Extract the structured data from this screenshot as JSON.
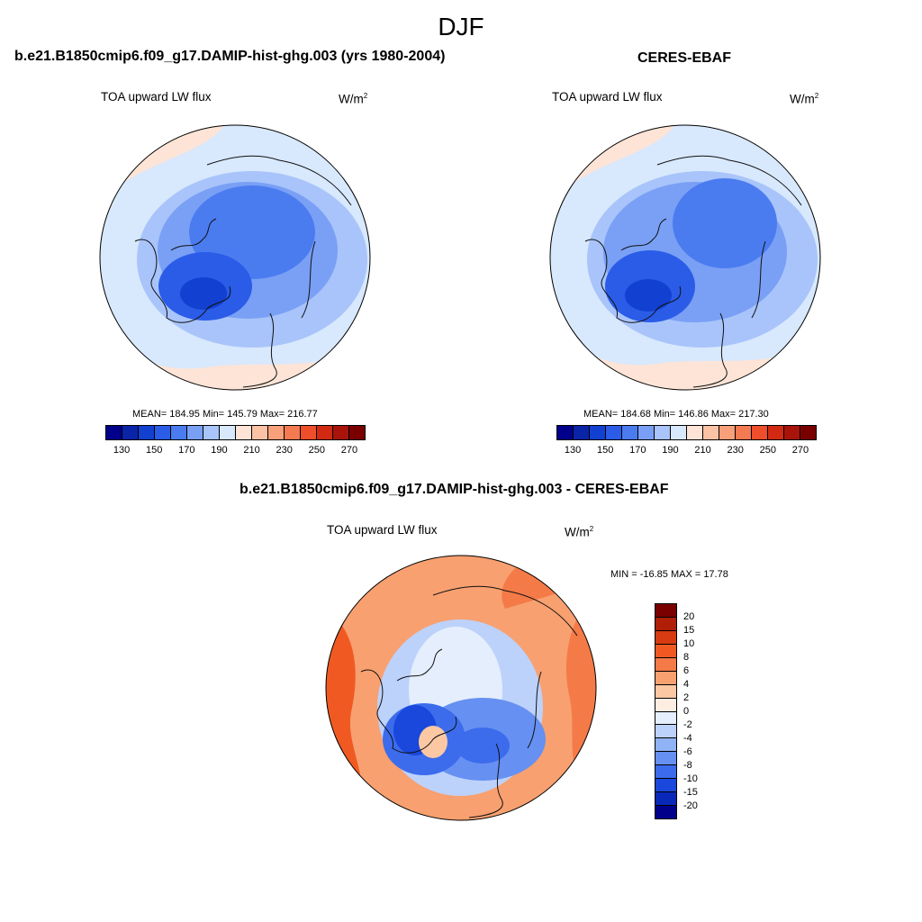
{
  "season": "DJF",
  "panels": [
    {
      "title": "b.e21.B1850cmip6.f09_g17.DAMIP-hist-ghg.003 (yrs 1980-2004)",
      "variable": "TOA upward LW flux",
      "unit_base": "W/m",
      "unit_exp": "2",
      "stats": "MEAN= 184.95  Min= 145.79  Max= 216.77"
    },
    {
      "title": "CERES-EBAF",
      "variable": "TOA upward LW flux",
      "unit_base": "W/m",
      "unit_exp": "2",
      "stats": "MEAN= 184.68  Min= 146.86  Max= 217.30"
    }
  ],
  "diff_panel": {
    "title": "b.e21.B1850cmip6.f09_g17.DAMIP-hist-ghg.003 - CERES-EBAF",
    "variable": "TOA upward LW flux",
    "unit_base": "W/m",
    "unit_exp": "2",
    "stats": "MIN = -16.85 MAX =  17.78"
  },
  "colorbar_main": {
    "colors": [
      "#00008b",
      "#0a24a8",
      "#1240d0",
      "#2a5ce8",
      "#4a7cf0",
      "#7aa0f5",
      "#a8c4fa",
      "#d8e8fd",
      "#fde4d6",
      "#fcc2a6",
      "#f8a07a",
      "#f47a52",
      "#ee4e2a",
      "#d22a12",
      "#a8140a",
      "#7a0000"
    ],
    "ticks": [
      "130",
      "150",
      "170",
      "190",
      "210",
      "230",
      "250",
      "270"
    ]
  },
  "colorbar_diff": {
    "colors": [
      "#7a0000",
      "#b01e08",
      "#d83a12",
      "#f05a22",
      "#f47a48",
      "#f8a070",
      "#fcc8a4",
      "#feeee2",
      "#e4eefd",
      "#bcd2fb",
      "#90b2f6",
      "#6690f2",
      "#3c6cec",
      "#1a48dc",
      "#0a28b8",
      "#00008b"
    ],
    "ticks": [
      "20",
      "15",
      "10",
      "8",
      "6",
      "4",
      "2",
      "0",
      "-2",
      "-4",
      "-6",
      "-8",
      "-10",
      "-15",
      "-20"
    ]
  }
}
